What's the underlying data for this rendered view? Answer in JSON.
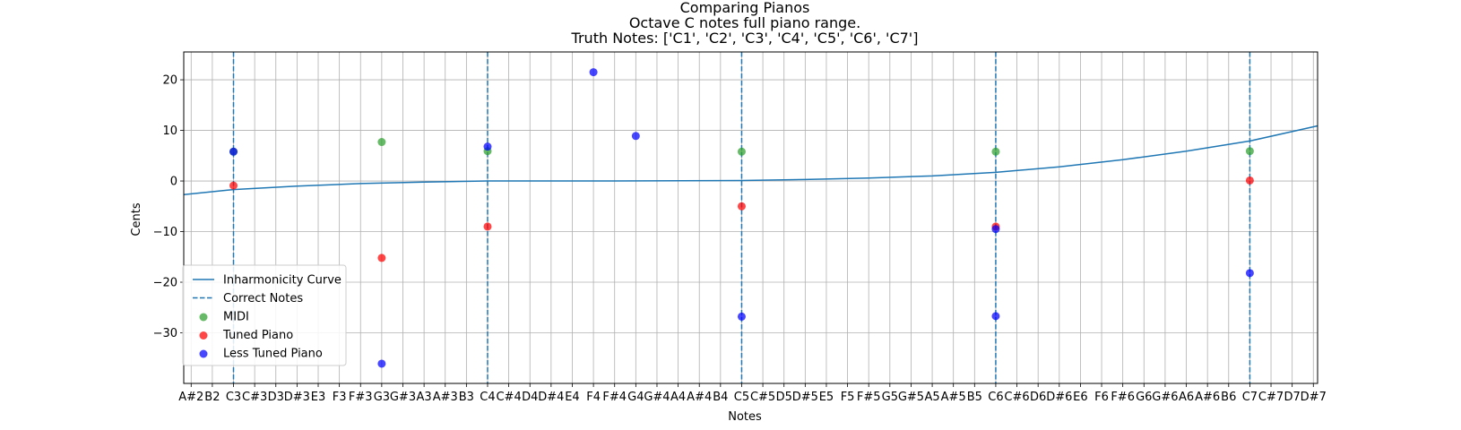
{
  "chart_data": {
    "type": "scatter",
    "title": [
      "Comparing Pianos",
      "Octave C notes full piano range.",
      "Truth Notes: ['C1', 'C2', 'C3', 'C4', 'C5', 'C6', 'C7']"
    ],
    "xlabel": "Notes",
    "ylabel": "Cents",
    "x_ticks": [
      "A#2",
      "B2",
      "C3",
      "C#3",
      "D3",
      "D#3",
      "E3",
      "F3",
      "F#3",
      "G3",
      "G#3",
      "A3",
      "A#3",
      "B3",
      "C4",
      "C#4",
      "D4",
      "D#4",
      "E4",
      "F4",
      "F#4",
      "G4",
      "G#4",
      "A4",
      "A#4",
      "B4",
      "C5",
      "C#5",
      "D5",
      "D#5",
      "E5",
      "F5",
      "F#5",
      "G5",
      "G#5",
      "A5",
      "A#5",
      "B5",
      "C6",
      "C#6",
      "D6",
      "D#6",
      "E6",
      "F6",
      "F#6",
      "G6",
      "G#6",
      "A6",
      "A#6",
      "B6",
      "C7",
      "C#7",
      "D7",
      "D#7"
    ],
    "xlim": [
      -0.35,
      53.2
    ],
    "ylim": [
      -40,
      25.5
    ],
    "y_ticks": [
      20,
      10,
      0,
      -10,
      -20,
      -30
    ],
    "grid": true,
    "legend_position": "lower-left",
    "correct_notes_x": [
      2,
      14,
      26,
      38,
      50
    ],
    "inharmonicity_curve": {
      "name": "Inharmonicity Curve",
      "color": "#1f77b4",
      "x": [
        -0.35,
        2,
        5,
        8,
        11,
        14,
        20,
        26,
        29,
        32,
        35,
        38,
        41,
        44,
        47,
        50,
        53.2
      ],
      "y": [
        -2.7,
        -1.7,
        -1.0,
        -0.5,
        -0.2,
        0,
        0,
        0.1,
        0.3,
        0.6,
        1.0,
        1.7,
        2.8,
        4.2,
        5.9,
        7.9,
        10.9
      ]
    },
    "series": [
      {
        "name": "MIDI",
        "color": "#2ca02c",
        "points": [
          [
            2,
            5.8
          ],
          [
            9,
            7.7
          ],
          [
            14,
            5.9
          ],
          [
            26,
            5.8
          ],
          [
            38,
            5.8
          ],
          [
            50,
            5.9
          ]
        ]
      },
      {
        "name": "Tuned Piano",
        "color": "#ff0000",
        "points": [
          [
            2,
            -0.9
          ],
          [
            9,
            -15.2
          ],
          [
            14,
            -9.0
          ],
          [
            26,
            -5.0
          ],
          [
            38,
            -9.0
          ],
          [
            50,
            0.1
          ]
        ]
      },
      {
        "name": "Less Tuned Piano",
        "color": "#0000ff",
        "points": [
          [
            2,
            5.8
          ],
          [
            9,
            -36.1
          ],
          [
            14,
            6.8
          ],
          [
            19,
            21.5
          ],
          [
            21,
            8.9
          ],
          [
            26,
            -26.8
          ],
          [
            38,
            -9.5
          ],
          [
            38,
            -26.7
          ],
          [
            50,
            -18.2
          ]
        ]
      }
    ],
    "legend": [
      {
        "label": "Inharmonicity Curve",
        "kind": "line",
        "color": "#1f77b4"
      },
      {
        "label": "Correct Notes",
        "kind": "dashed",
        "color": "#1f77b4"
      },
      {
        "label": "MIDI",
        "kind": "dot",
        "color": "#2ca02c"
      },
      {
        "label": "Tuned Piano",
        "kind": "dot",
        "color": "#ff0000"
      },
      {
        "label": "Less Tuned Piano",
        "kind": "dot",
        "color": "#0000ff"
      }
    ]
  }
}
